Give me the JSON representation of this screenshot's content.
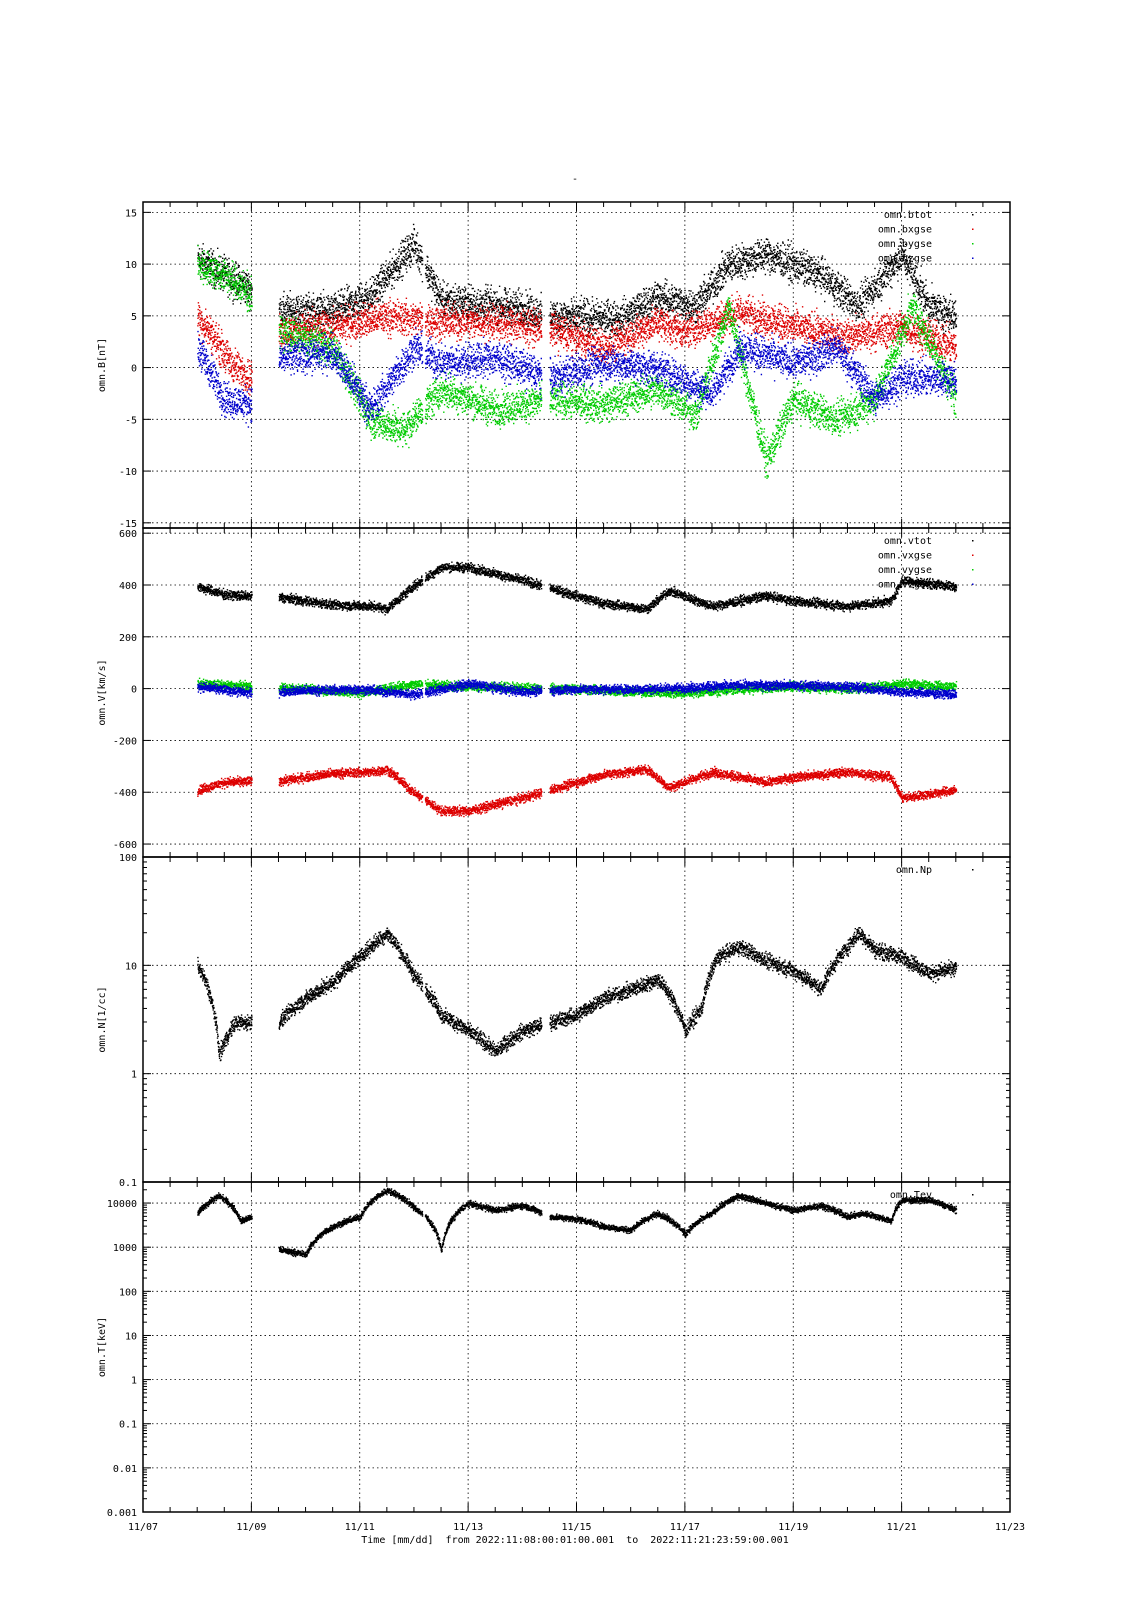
{
  "figure": {
    "top_label": "-",
    "x_axis_title": "Time [mm/dd]  from 2022:11:08:00:01:00.001  to  2022:11:21:23:59:00.001",
    "x_tick_labels": [
      "11/07",
      "11/09",
      "11/11",
      "11/13",
      "11/15",
      "11/17",
      "11/19",
      "11/21",
      "11/23"
    ],
    "colors": {
      "black": "#000000",
      "red": "#dd0000",
      "green": "#00cc00",
      "blue": "#0000cc"
    }
  },
  "chart_data": [
    {
      "type": "scatter",
      "ylabel": "omn.B[nT]",
      "ylim": [
        -15.5,
        16
      ],
      "yscale": "linear",
      "yticks": [
        -15,
        -10,
        -5,
        0,
        5,
        10,
        15
      ],
      "ytick_labels": [
        "-15",
        "-10",
        "-5",
        "0",
        "5",
        "10",
        "15"
      ],
      "x_unit": "days since 11/07",
      "xlim": [
        0,
        16
      ],
      "grid": true,
      "legend_position": "top-right",
      "data_start": 1.0,
      "data_end": 15.0,
      "gaps": [
        [
          2.0,
          2.5
        ],
        [
          5.15,
          5.2
        ],
        [
          7.35,
          7.5
        ]
      ],
      "series": [
        {
          "name": "omn.btot",
          "color": "#000000",
          "x": [
            1.0,
            2.0,
            2.5,
            3.5,
            4.2,
            5.0,
            5.5,
            7.0,
            7.5,
            8.8,
            9.5,
            10.2,
            10.8,
            11.5,
            12.5,
            13.2,
            14.0,
            14.5,
            15.0
          ],
          "y": [
            10.5,
            7.5,
            5.5,
            5.5,
            7.0,
            12.0,
            6.5,
            5.8,
            5.0,
            4.8,
            6.8,
            6.0,
            10.0,
            11.0,
            9.0,
            6.0,
            11.0,
            6.0,
            5.0
          ]
        },
        {
          "name": "omn.bxgse",
          "color": "#dd0000",
          "x": [
            1.0,
            1.3,
            1.6,
            2.0,
            2.5,
            3.5,
            4.5,
            5.5,
            6.5,
            7.5,
            8.5,
            9.5,
            10.0,
            11.0,
            12.0,
            13.0,
            14.0,
            15.0
          ],
          "y": [
            5.0,
            3.0,
            0.5,
            -1.0,
            3.5,
            4.0,
            5.0,
            4.5,
            4.5,
            3.8,
            2.0,
            4.5,
            3.5,
            5.5,
            4.0,
            3.0,
            4.0,
            2.0
          ]
        },
        {
          "name": "omn.bygse",
          "color": "#00cc00",
          "x": [
            1.0,
            1.5,
            2.0,
            2.5,
            3.5,
            4.2,
            4.8,
            5.5,
            6.5,
            7.5,
            8.5,
            9.5,
            10.2,
            10.8,
            11.5,
            12.0,
            12.8,
            13.5,
            14.2,
            15.0
          ],
          "y": [
            10.0,
            9.0,
            7.0,
            3.5,
            2.0,
            -5.0,
            -6.0,
            -2.0,
            -4.0,
            -3.0,
            -3.5,
            -2.0,
            -4.5,
            6.0,
            -9.0,
            -3.0,
            -5.0,
            -3.0,
            6.0,
            -3.0
          ]
        },
        {
          "name": "omn.bzgse",
          "color": "#0000cc",
          "x": [
            1.0,
            1.5,
            2.0,
            2.5,
            3.5,
            4.2,
            5.0,
            5.5,
            6.5,
            7.5,
            8.5,
            9.5,
            10.5,
            11.0,
            12.0,
            12.8,
            13.5,
            14.0,
            15.0
          ],
          "y": [
            2.0,
            -3.0,
            -3.5,
            1.0,
            1.5,
            -4.0,
            2.0,
            0.5,
            1.0,
            -1.0,
            0.5,
            0.0,
            -2.5,
            2.0,
            0.5,
            2.0,
            -3.0,
            -1.0,
            -1.0
          ]
        }
      ]
    },
    {
      "type": "scatter",
      "ylabel": "omn.V[km/s]",
      "ylim": [
        -650,
        620
      ],
      "yscale": "linear",
      "yticks": [
        -600,
        -400,
        -200,
        0,
        200,
        400,
        600
      ],
      "ytick_labels": [
        "-600",
        "-400",
        "-200",
        "0",
        "200",
        "400",
        "600"
      ],
      "x_unit": "days since 11/07",
      "xlim": [
        0,
        16
      ],
      "grid": true,
      "legend_position": "top-right",
      "data_start": 1.0,
      "data_end": 15.0,
      "gaps": [
        [
          2.0,
          2.5
        ],
        [
          5.15,
          5.2
        ],
        [
          7.35,
          7.5
        ]
      ],
      "series": [
        {
          "name": "omn.vtot",
          "color": "#000000",
          "x": [
            1.0,
            1.5,
            2.0,
            2.5,
            3.5,
            4.2,
            4.5,
            5.0,
            5.5,
            6.0,
            7.0,
            7.5,
            8.5,
            9.3,
            9.7,
            10.5,
            11.5,
            12.0,
            13.0,
            13.8,
            14.0,
            15.0
          ],
          "y": [
            395,
            365,
            358,
            355,
            325,
            320,
            310,
            400,
            470,
            470,
            420,
            390,
            330,
            310,
            380,
            320,
            360,
            340,
            320,
            340,
            420,
            395
          ]
        },
        {
          "name": "omn.vxgse",
          "color": "#dd0000",
          "x": [
            1.0,
            1.5,
            2.0,
            2.5,
            3.5,
            4.2,
            4.5,
            5.0,
            5.5,
            6.0,
            7.0,
            7.5,
            8.5,
            9.3,
            9.7,
            10.5,
            11.5,
            12.0,
            13.0,
            13.8,
            14.0,
            15.0
          ],
          "y": [
            -390,
            -360,
            -355,
            -355,
            -325,
            -320,
            -310,
            -400,
            -470,
            -470,
            -420,
            -390,
            -330,
            -310,
            -380,
            -320,
            -360,
            -340,
            -320,
            -340,
            -420,
            -390
          ]
        },
        {
          "name": "omn.vygse",
          "color": "#00cc00",
          "x": [
            1.0,
            2.0,
            3.0,
            4.0,
            5.0,
            6.0,
            7.0,
            8.0,
            9.0,
            10.0,
            11.0,
            12.0,
            13.0,
            14.0,
            15.0
          ],
          "y": [
            20,
            10,
            0,
            -15,
            20,
            10,
            5,
            0,
            -10,
            -15,
            0,
            10,
            0,
            20,
            10
          ]
        },
        {
          "name": "omn.vzgse",
          "color": "#0000cc",
          "x": [
            1.0,
            2.0,
            3.0,
            4.0,
            5.0,
            6.0,
            7.0,
            8.0,
            9.0,
            10.0,
            11.0,
            12.0,
            13.0,
            14.0,
            15.0
          ],
          "y": [
            10,
            -15,
            -5,
            0,
            -20,
            20,
            -10,
            0,
            0,
            5,
            15,
            15,
            10,
            -10,
            -20
          ]
        }
      ]
    },
    {
      "type": "scatter",
      "ylabel": "omn.N[1/cc]",
      "ylim": [
        0.1,
        100
      ],
      "yscale": "log",
      "yticks": [
        0.1,
        1,
        10,
        100
      ],
      "ytick_labels": [
        "0.1",
        "1",
        "10",
        "100"
      ],
      "x_unit": "days since 11/07",
      "xlim": [
        0,
        16
      ],
      "grid": true,
      "legend_position": "top-right",
      "data_start": 1.0,
      "data_end": 15.0,
      "gaps": [
        [
          2.0,
          2.5
        ],
        [
          5.15,
          5.2
        ],
        [
          7.35,
          7.5
        ]
      ],
      "series": [
        {
          "name": "omn.Np",
          "color": "#000000",
          "x": [
            1.0,
            1.2,
            1.4,
            1.7,
            2.0,
            2.5,
            3.0,
            3.5,
            4.0,
            4.5,
            4.8,
            5.0,
            5.5,
            6.0,
            6.5,
            7.0,
            7.5,
            8.0,
            8.5,
            9.0,
            9.5,
            10.0,
            10.3,
            10.6,
            11.0,
            11.5,
            12.0,
            12.5,
            13.0,
            13.2,
            13.5,
            14.0,
            14.5,
            15.0
          ],
          "y": [
            10.0,
            6.0,
            1.5,
            3.0,
            3.0,
            3.0,
            5.0,
            7.0,
            12.0,
            20.0,
            12.0,
            8.0,
            3.5,
            2.5,
            1.6,
            2.5,
            3.0,
            3.5,
            5.0,
            6.0,
            7.5,
            2.5,
            4.0,
            12.0,
            15.0,
            11.0,
            9.0,
            6.0,
            15.0,
            20.0,
            14.0,
            12.0,
            8.5,
            9.5
          ]
        }
      ]
    },
    {
      "type": "scatter",
      "ylabel": "omn.T[keV]",
      "ylim": [
        0.001,
        30000
      ],
      "yscale": "log",
      "yticks": [
        0.001,
        0.01,
        0.1,
        1,
        10,
        100,
        1000,
        10000
      ],
      "ytick_labels": [
        "0.001",
        "0.01",
        "0.1",
        "1",
        "10",
        "100",
        "1000",
        "10000"
      ],
      "x_unit": "days since 11/07",
      "xlim": [
        0,
        16
      ],
      "grid": true,
      "legend_position": "top-right",
      "data_start": 1.0,
      "data_end": 15.0,
      "gaps": [
        [
          2.0,
          2.5
        ],
        [
          5.15,
          5.2
        ],
        [
          7.35,
          7.5
        ]
      ],
      "series": [
        {
          "name": "omn.Tev",
          "color": "#000000",
          "x": [
            1.0,
            1.4,
            1.8,
            2.0,
            2.5,
            3.0,
            3.5,
            4.0,
            4.5,
            5.0,
            5.5,
            6.0,
            6.5,
            7.0,
            7.5,
            8.0,
            8.5,
            9.0,
            9.5,
            10.0,
            10.5,
            11.0,
            11.5,
            12.0,
            12.5,
            13.0,
            13.3,
            13.8,
            14.0,
            14.5,
            15.0
          ],
          "y": [
            6000,
            15000,
            4000,
            5000,
            900,
            700,
            3000,
            5000,
            20000,
            8000,
            800,
            10000,
            7000,
            9000,
            5000,
            4500,
            3000,
            2500,
            6000,
            2000,
            6000,
            15000,
            10000,
            7000,
            9000,
            5000,
            6000,
            4000,
            12000,
            12000,
            7000
          ]
        }
      ]
    }
  ]
}
